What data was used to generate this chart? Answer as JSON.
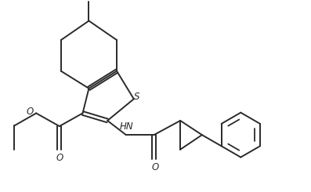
{
  "bg_color": "#ffffff",
  "line_color": "#2a2a2a",
  "line_width": 1.4,
  "fig_width": 3.97,
  "fig_height": 2.45,
  "dpi": 100,
  "xlim": [
    0,
    10
  ],
  "ylim": [
    0,
    6.15
  ]
}
